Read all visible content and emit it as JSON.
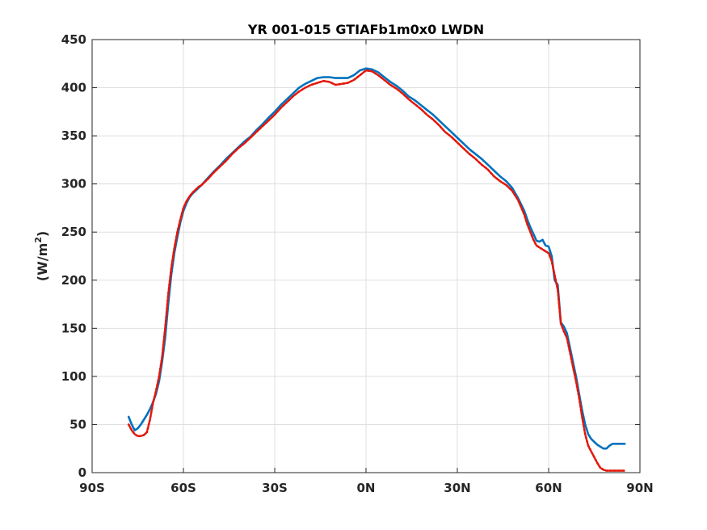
{
  "chart_data": {
    "type": "line",
    "title": "YR 001-015 GTIAFb1m0x0 LWDN",
    "xlabel": "",
    "ylabel": "(W/m2)",
    "ylabel_parts": {
      "main": "(W/m",
      "sup": "2",
      "close": ")"
    },
    "xlim": [
      -90,
      90
    ],
    "ylim": [
      0,
      450
    ],
    "grid": true,
    "xticks": [
      {
        "value": -90,
        "label": "90S"
      },
      {
        "value": -60,
        "label": "60S"
      },
      {
        "value": -30,
        "label": "30S"
      },
      {
        "value": 0,
        "label": "0N"
      },
      {
        "value": 30,
        "label": "30N"
      },
      {
        "value": 60,
        "label": "60N"
      },
      {
        "value": 90,
        "label": "90N"
      }
    ],
    "yticks": [
      0,
      50,
      100,
      150,
      200,
      250,
      300,
      350,
      400,
      450
    ],
    "series": [
      {
        "color": "#0072BD",
        "style": "solid",
        "x": [
          -78,
          -77,
          -76,
          -75,
          -74,
          -73,
          -72,
          -71,
          -70,
          -69,
          -68,
          -67,
          -66,
          -65,
          -64,
          -63,
          -62,
          -61,
          -60,
          -59,
          -58,
          -57,
          -56,
          -55,
          -54,
          -52,
          -50,
          -48,
          -46,
          -44,
          -42,
          -40,
          -38,
          -36,
          -34,
          -32,
          -30,
          -28,
          -26,
          -24,
          -22,
          -20,
          -18,
          -16,
          -14,
          -12,
          -10,
          -8,
          -6,
          -4,
          -2,
          0,
          2,
          4,
          6,
          8,
          10,
          12,
          14,
          16,
          18,
          20,
          22,
          24,
          26,
          28,
          30,
          32,
          34,
          36,
          38,
          40,
          42,
          44,
          46,
          48,
          50,
          52,
          53,
          54,
          55,
          56,
          57,
          58,
          59,
          60,
          61,
          62,
          63,
          64,
          65,
          66,
          67,
          68,
          69,
          70,
          71,
          72,
          73,
          74,
          75,
          76,
          77,
          78,
          79,
          80,
          81,
          82,
          83,
          84,
          85
        ],
        "y": [
          58,
          50,
          44,
          46,
          50,
          55,
          60,
          66,
          73,
          82,
          95,
          115,
          140,
          175,
          205,
          228,
          245,
          260,
          272,
          280,
          286,
          290,
          293,
          296,
          299,
          306,
          313,
          319,
          326,
          332,
          338,
          344,
          349,
          356,
          362,
          369,
          375,
          382,
          388,
          394,
          400,
          404,
          407,
          410,
          411,
          411,
          410,
          410,
          410,
          413,
          418,
          420,
          419,
          416,
          411,
          406,
          402,
          397,
          391,
          387,
          382,
          377,
          372,
          366,
          360,
          354,
          348,
          342,
          336,
          331,
          326,
          320,
          314,
          308,
          303,
          296,
          285,
          272,
          263,
          255,
          248,
          241,
          240,
          242,
          236,
          235,
          225,
          200,
          195,
          156,
          152,
          145,
          130,
          115,
          100,
          82,
          65,
          50,
          40,
          35,
          32,
          29,
          27,
          25,
          25,
          28,
          30,
          30,
          30,
          30,
          30
        ]
      },
      {
        "color": "#E3170A",
        "style": "dashed",
        "x": [
          -78,
          -77,
          -76,
          -75,
          -74,
          -73,
          -72,
          -71,
          -70,
          -69,
          -68,
          -67,
          -66,
          -65,
          -64,
          -63,
          -62,
          -61,
          -60,
          -59,
          -58,
          -57,
          -56,
          -55,
          -54,
          -52,
          -50,
          -48,
          -46,
          -44,
          -42,
          -40,
          -38,
          -36,
          -34,
          -32,
          -30,
          -28,
          -26,
          -24,
          -22,
          -20,
          -18,
          -16,
          -14,
          -12,
          -10,
          -8,
          -6,
          -4,
          -2,
          0,
          2,
          4,
          6,
          8,
          10,
          12,
          14,
          16,
          18,
          20,
          22,
          24,
          26,
          28,
          30,
          32,
          34,
          36,
          38,
          40,
          42,
          44,
          46,
          48,
          50,
          52,
          53,
          54,
          55,
          56,
          57,
          58,
          59,
          60,
          61,
          62,
          63,
          64,
          65,
          66,
          67,
          68,
          69,
          70,
          71,
          72,
          73,
          74,
          75,
          76,
          77,
          78,
          79,
          80,
          81,
          82,
          83,
          84,
          85
        ],
        "y": [
          50,
          44,
          40,
          38,
          38,
          39,
          42,
          55,
          72,
          85,
          100,
          120,
          150,
          185,
          212,
          233,
          250,
          263,
          275,
          282,
          287,
          291,
          294,
          297,
          299,
          305,
          312,
          318,
          324,
          331,
          337,
          342,
          348,
          354,
          360,
          366,
          372,
          379,
          385,
          391,
          396,
          400,
          403,
          405,
          407,
          406,
          403,
          404,
          405,
          408,
          413,
          418,
          417,
          413,
          408,
          403,
          399,
          394,
          388,
          383,
          378,
          372,
          367,
          361,
          354,
          349,
          343,
          337,
          331,
          326,
          320,
          315,
          308,
          303,
          299,
          293,
          283,
          268,
          258,
          250,
          242,
          236,
          234,
          232,
          230,
          228,
          220,
          205,
          190,
          155,
          147,
          140,
          125,
          110,
          95,
          78,
          58,
          40,
          28,
          22,
          16,
          10,
          5,
          3,
          2,
          2,
          2,
          2,
          2,
          2,
          2
        ]
      }
    ]
  }
}
